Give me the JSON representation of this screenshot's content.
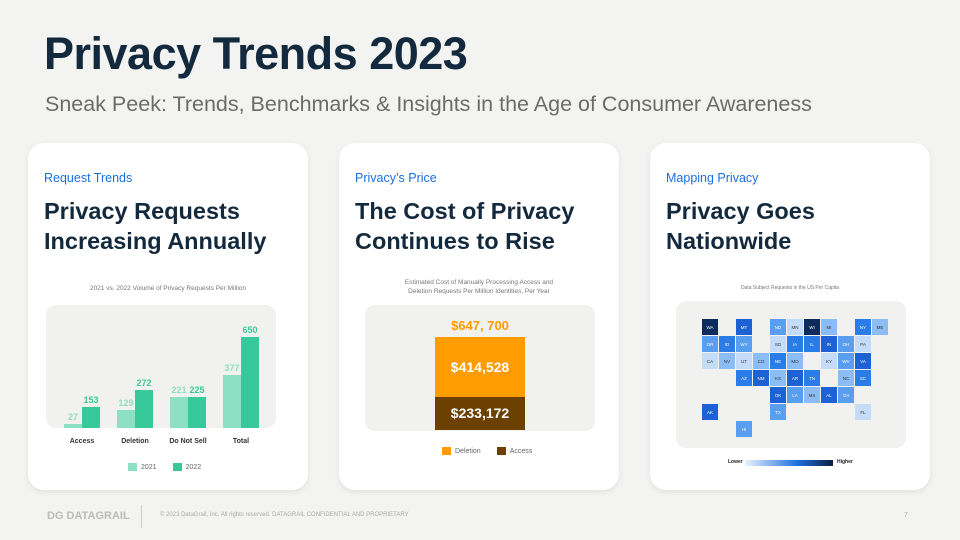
{
  "header": {
    "title": "Privacy Trends 2023",
    "subtitle": "Sneak Peek: Trends, Benchmarks & Insights in the Age of Consumer Awareness"
  },
  "cards": [
    {
      "kicker": "Request Trends",
      "title_line1": "Privacy Requests",
      "title_line2": "Increasing Annually"
    },
    {
      "kicker": "Privacy’s Price",
      "title_line1": "The Cost of Privacy",
      "title_line2": "Continues to Rise"
    },
    {
      "kicker": "Mapping Privacy",
      "title_line1": "Privacy Goes",
      "title_line2": "Nationwide"
    }
  ],
  "chart_data": [
    {
      "type": "bar",
      "title": "2021 vs. 2022 Volume of Privacy Requests Per Million",
      "categories": [
        "Access",
        "Deletion",
        "Do Not Sell",
        "Total"
      ],
      "series": [
        {
          "name": "2021",
          "values": [
            27,
            129,
            221,
            377
          ],
          "color": "#8ee0c4"
        },
        {
          "name": "2022",
          "values": [
            153,
            272,
            225,
            650
          ],
          "color": "#38c99a"
        }
      ],
      "ylim": [
        0,
        650
      ]
    },
    {
      "type": "bar",
      "title_line1": "Estimated Cost of Manually Processing Access and",
      "title_line2": "Deletion Requests Per Million Identities, Per Year",
      "total_label": "$647, 700",
      "total": 647700,
      "series": [
        {
          "name": "Access",
          "value": 233172,
          "label": "$233,172",
          "color": "#6b4000"
        },
        {
          "name": "Deletion",
          "value": 414528,
          "label": "$414,528",
          "color": "#ff9c00"
        }
      ]
    },
    {
      "type": "heatmap",
      "title": "Data Subject Requests in the US Per Capita",
      "legend_low": "Lower",
      "legend_high": "Higher",
      "states": [
        "WA",
        "OR",
        "CA",
        "ID",
        "NV",
        "MT",
        "WY",
        "UT",
        "AZ",
        "CO",
        "NM",
        "ND",
        "SD",
        "NE",
        "KS",
        "OK",
        "TX",
        "MN",
        "IA",
        "MO",
        "AR",
        "LA",
        "WI",
        "IL",
        "MI",
        "IN",
        "OH",
        "KY",
        "TN",
        "MS",
        "AL",
        "GA",
        "FL",
        "SC",
        "NC",
        "VA",
        "WV",
        "PA",
        "NY",
        "ME",
        "AK",
        "HI"
      ]
    }
  ],
  "footer": {
    "logo": "DG DATAGRAIL",
    "text": "© 2023 DataGrail, Inc. All rights reserved. DATAGRAIL CONFIDENTIAL AND PROPRIETARY",
    "page": "7"
  }
}
